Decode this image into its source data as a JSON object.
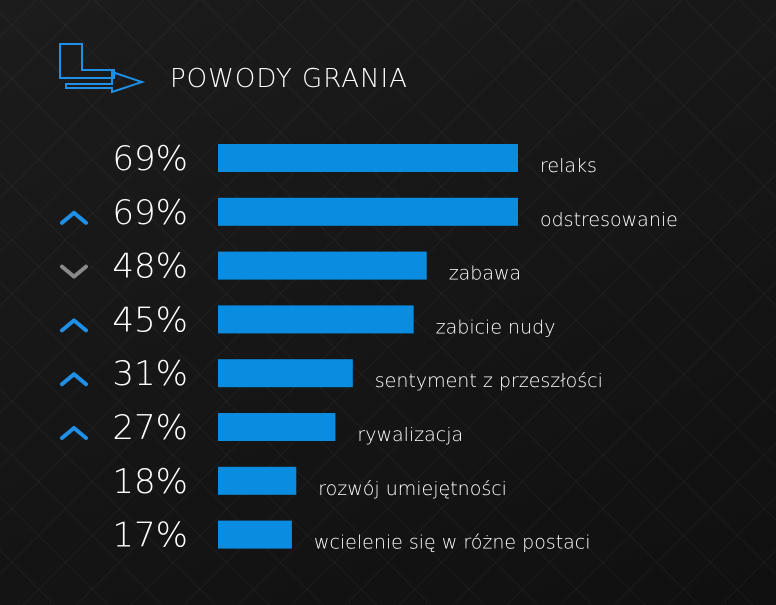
{
  "colors": {
    "bar": "#0a8de0",
    "trend_up": "#1e90e8",
    "trend_down": "#8a8a8a",
    "logo": "#1e90e8"
  },
  "logo_icon": "arrow-logo-icon",
  "chart_data": {
    "type": "bar",
    "orientation": "horizontal",
    "title": "POWODY GRANIA",
    "xlim": [
      0,
      100
    ],
    "grid": false,
    "categories": [
      "relaks",
      "odstresowanie",
      "zabawa",
      "zabicie nudy",
      "sentyment z przeszłości",
      "rywalizacja",
      "rozwój umiejętności",
      "wcielenie się w różne postaci"
    ],
    "values": [
      69,
      69,
      48,
      45,
      31,
      27,
      18,
      17
    ],
    "value_labels": [
      "69%",
      "69%",
      "48%",
      "45%",
      "31%",
      "27%",
      "18%",
      "17%"
    ],
    "trend_icons": [
      "none",
      "up-chevron-icon",
      "down-chevron-icon",
      "up-chevron-icon",
      "up-chevron-icon",
      "up-chevron-icon",
      "none",
      "none"
    ]
  }
}
